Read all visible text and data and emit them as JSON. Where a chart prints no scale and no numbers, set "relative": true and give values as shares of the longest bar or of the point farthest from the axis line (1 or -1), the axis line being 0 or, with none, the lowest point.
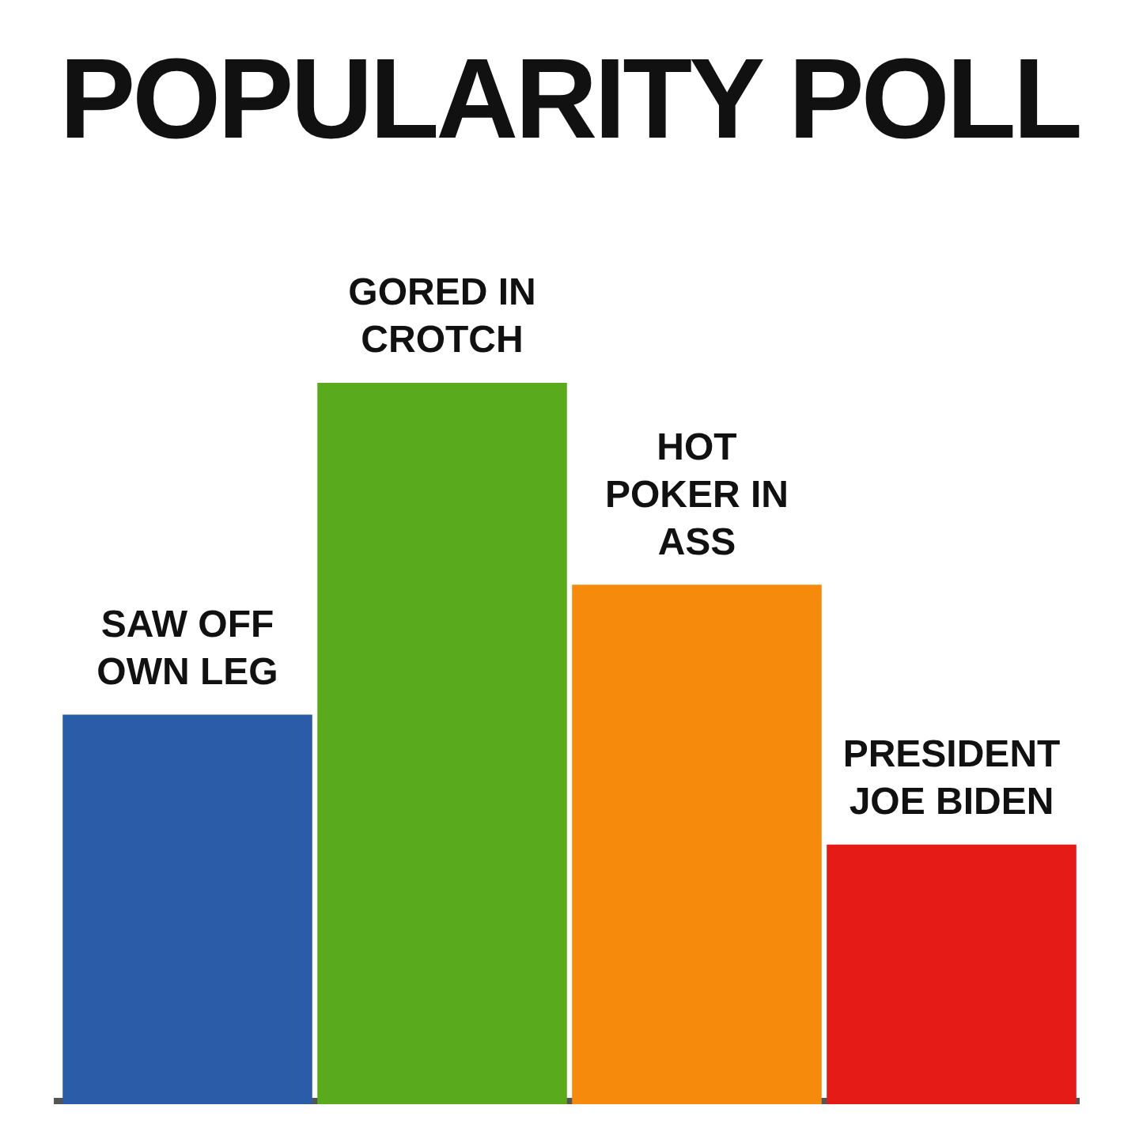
{
  "chart_data": {
    "type": "bar",
    "title": "POPULARITY POLL",
    "relative": true,
    "categories": [
      "SAW OFF OWN LEG",
      "GORED IN CROTCH",
      "HOT POKER IN ASS",
      "PRESIDENT JOE BIDEN"
    ],
    "values": [
      0.54,
      1,
      0.72,
      0.36
    ],
    "colors": [
      "#2b5ca8",
      "#5aaa1e",
      "#f58a0c",
      "#e41b17"
    ],
    "grid": false,
    "legend": false
  }
}
